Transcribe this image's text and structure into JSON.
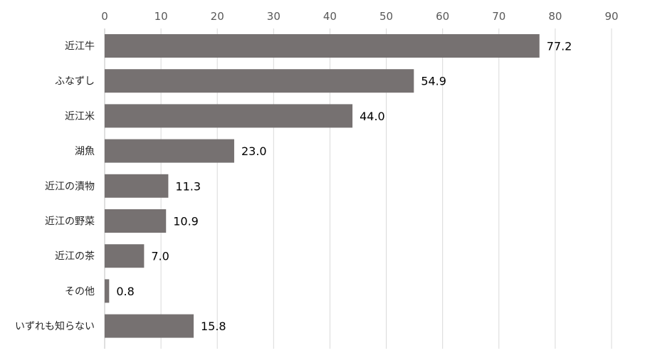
{
  "chart_data": {
    "type": "bar",
    "orientation": "horizontal",
    "title": "",
    "xlabel": "",
    "ylabel": "",
    "categories": [
      "近江牛",
      "ふなずし",
      "近江米",
      "湖魚",
      "近江の漬物",
      "近江の野菜",
      "近江の茶",
      "その他",
      "いずれも知らない"
    ],
    "values": [
      77.2,
      54.9,
      44.0,
      23.0,
      11.3,
      10.9,
      7.0,
      0.8,
      15.8
    ],
    "data_labels": [
      "77.2",
      "54.9",
      "44.0",
      "23.0",
      "11.3",
      "10.9",
      "7.0",
      "0.8",
      "15.8"
    ],
    "xlim": [
      0,
      90
    ],
    "x_ticks": [
      "0",
      "10",
      "20",
      "30",
      "40",
      "50",
      "60",
      "70",
      "80",
      "90"
    ],
    "x_tick_values": [
      0,
      10,
      20,
      30,
      40,
      50,
      60,
      70,
      80,
      90
    ],
    "axis_position": "top",
    "grid": true,
    "legend": "none",
    "bar_color": "#767171",
    "grid_color": "#d9d9d9"
  }
}
